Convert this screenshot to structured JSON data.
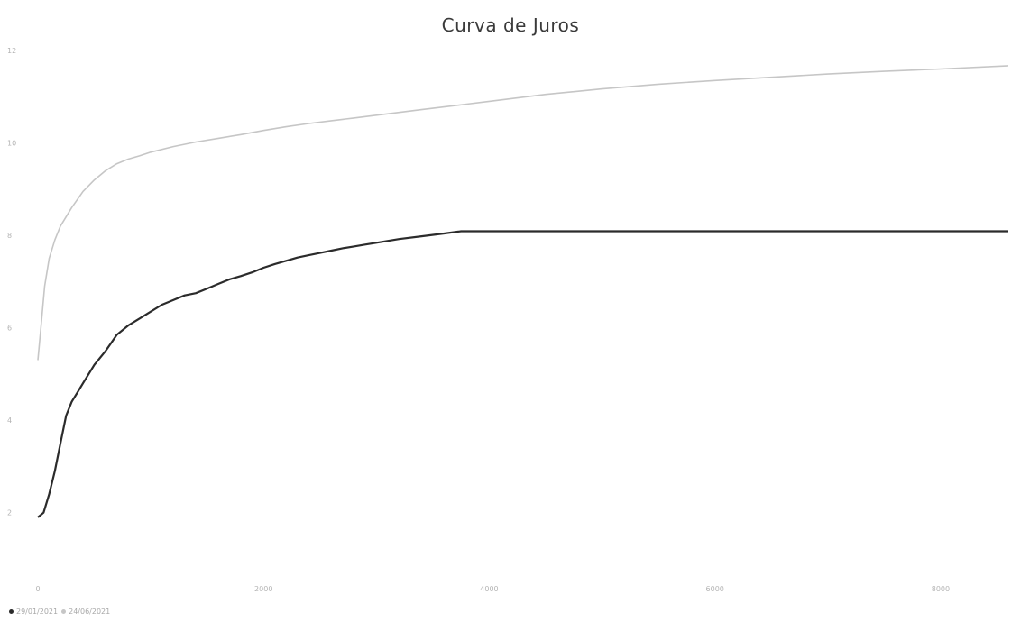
{
  "chart_data": {
    "type": "line",
    "title": "Curva de Juros",
    "xlabel": "",
    "ylabel": "",
    "xlim": [
      0,
      8600
    ],
    "ylim": [
      1,
      12
    ],
    "x_ticks": [
      "0",
      "2000",
      "4000",
      "6000",
      "8000"
    ],
    "x_tick_values": [
      0,
      2000,
      4000,
      6000,
      8000
    ],
    "y_ticks": [
      "2",
      "4",
      "6",
      "8",
      "10",
      "12"
    ],
    "y_tick_values": [
      2,
      4,
      6,
      8,
      10,
      12
    ],
    "grid": false,
    "legend_position": "bottom-left",
    "series": [
      {
        "name": "29/01/2021",
        "color": "#2b2b2b",
        "x": [
          0,
          50,
          100,
          150,
          200,
          250,
          300,
          350,
          400,
          450,
          500,
          600,
          700,
          800,
          900,
          1000,
          1100,
          1200,
          1300,
          1400,
          1500,
          1600,
          1700,
          1800,
          1900,
          2000,
          2100,
          2200,
          2300,
          2400,
          2500,
          2600,
          2700,
          2800,
          2900,
          3000,
          3200,
          3400,
          3600,
          3750,
          4000,
          5000,
          6000,
          7000,
          8000,
          8600
        ],
        "y": [
          1.9,
          2.0,
          2.4,
          2.9,
          3.5,
          4.1,
          4.4,
          4.6,
          4.8,
          5.0,
          5.2,
          5.5,
          5.85,
          6.05,
          6.2,
          6.35,
          6.5,
          6.6,
          6.7,
          6.75,
          6.85,
          6.95,
          7.05,
          7.12,
          7.2,
          7.3,
          7.38,
          7.45,
          7.52,
          7.57,
          7.62,
          7.67,
          7.72,
          7.76,
          7.8,
          7.84,
          7.92,
          7.98,
          8.04,
          8.09,
          8.09,
          8.09,
          8.09,
          8.09,
          8.09,
          8.09
        ]
      },
      {
        "name": "24/06/2021",
        "color": "#c6c6c6",
        "x": [
          0,
          30,
          60,
          100,
          150,
          200,
          300,
          400,
          500,
          600,
          700,
          800,
          900,
          1000,
          1200,
          1400,
          1600,
          1800,
          2000,
          2200,
          2400,
          2600,
          2800,
          3000,
          3200,
          3400,
          3600,
          3800,
          4000,
          4500,
          5000,
          5500,
          6000,
          6500,
          7000,
          7500,
          8000,
          8600
        ],
        "y": [
          5.3,
          6.1,
          6.9,
          7.5,
          7.9,
          8.2,
          8.6,
          8.95,
          9.2,
          9.4,
          9.55,
          9.65,
          9.72,
          9.8,
          9.92,
          10.02,
          10.1,
          10.18,
          10.27,
          10.35,
          10.42,
          10.48,
          10.54,
          10.6,
          10.66,
          10.72,
          10.78,
          10.84,
          10.9,
          11.05,
          11.17,
          11.27,
          11.35,
          11.42,
          11.49,
          11.55,
          11.6,
          11.67
        ]
      }
    ]
  }
}
